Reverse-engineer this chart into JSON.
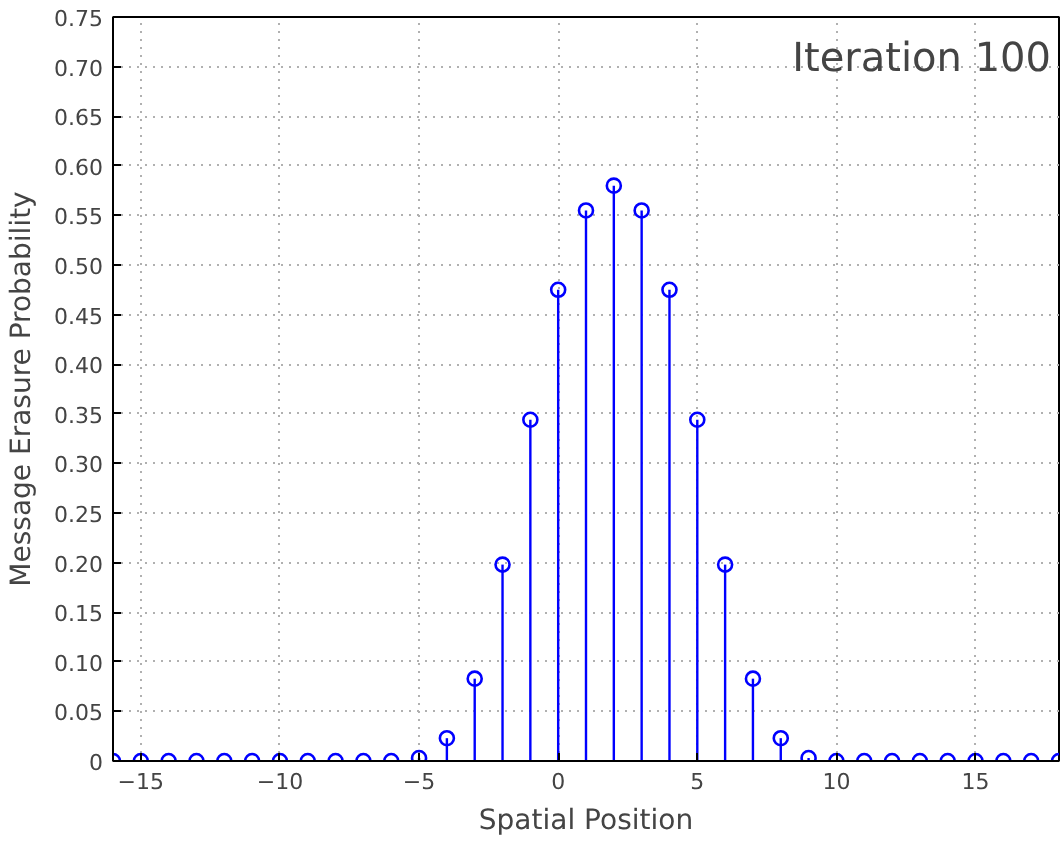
{
  "chart_data": {
    "type": "lollipop",
    "annotations": [
      "Iteration 100"
    ],
    "xlabel": "Spatial Position",
    "ylabel": "Message Erasure Probability",
    "x": [
      -16,
      -15,
      -14,
      -13,
      -12,
      -11,
      -10,
      -9,
      -8,
      -7,
      -6,
      -5,
      -4,
      -3,
      -2,
      -1,
      0,
      1,
      2,
      3,
      4,
      5,
      6,
      7,
      8,
      9,
      10,
      11,
      12,
      13,
      14,
      15,
      16,
      17,
      18
    ],
    "series": [
      {
        "color": "#0000ff",
        "values": [
          0,
          0,
          0,
          0,
          0,
          0,
          0,
          0,
          0,
          0,
          0,
          0.003,
          0.023,
          0.083,
          0.198,
          0.344,
          0.475,
          0.555,
          0.58,
          0.555,
          0.475,
          0.344,
          0.198,
          0.083,
          0.023,
          0.003,
          0,
          0,
          0,
          0,
          0,
          0,
          0,
          0,
          0
        ]
      }
    ],
    "xlim": [
      -16,
      18
    ],
    "ylim": [
      0,
      0.75
    ],
    "xticks": [
      {
        "value": -15,
        "label": "−15"
      },
      {
        "value": -10,
        "label": "−10"
      },
      {
        "value": -5,
        "label": "−5"
      },
      0,
      5,
      10,
      15
    ],
    "yticks": [
      0,
      0.05,
      {
        "value": 0.1,
        "label": "0.10"
      },
      0.15,
      {
        "value": 0.2,
        "label": "0.20"
      },
      0.25,
      {
        "value": 0.3,
        "label": "0.30"
      },
      0.35,
      {
        "value": 0.4,
        "label": "0.40"
      },
      0.45,
      {
        "value": 0.5,
        "label": "0.50"
      },
      0.55,
      {
        "value": 0.6,
        "label": "0.60"
      },
      0.65,
      {
        "value": 0.7,
        "label": "0.70"
      },
      0.75
    ],
    "grid": true,
    "marker": "circle",
    "line_style": "solid"
  }
}
